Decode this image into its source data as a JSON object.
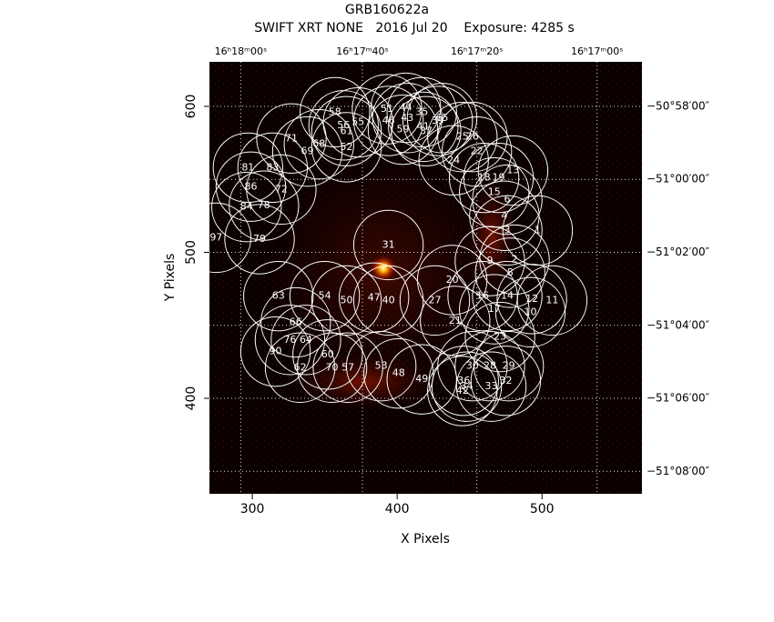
{
  "chart_data": {
    "type": "region-image",
    "title": "GRB160622a",
    "subtitle": "SWIFT XRT NONE   2016 Jul 20    Exposure: 4285 s",
    "x_label": "X Pixels",
    "y_label": "Y Pixels",
    "xlim": [
      270.4,
      569
    ],
    "ylim": [
      334.6,
      630.5
    ],
    "xticks": [
      300,
      400,
      500
    ],
    "yticks": [
      400,
      500,
      600
    ],
    "ra_ticks": [
      {
        "value": 292,
        "label": "16ʰ18ᵐ00ˢ"
      },
      {
        "value": 376,
        "label": "16ʰ17ᵐ40ˢ"
      },
      {
        "value": 455,
        "label": "16ʰ17ᵐ20ˢ"
      },
      {
        "value": 538,
        "label": "16ʰ17ᵐ00ˢ"
      }
    ],
    "dec_ticks": [
      {
        "value": 600,
        "label": "−50°58′00″"
      },
      {
        "value": 550,
        "label": "−51°00′00″"
      },
      {
        "value": 500,
        "label": "−51°02′00″"
      },
      {
        "value": 450,
        "label": "−51°04′00″"
      },
      {
        "value": 400,
        "label": "−51°06′00″"
      },
      {
        "value": 350,
        "label": "−51°08′00″"
      }
    ],
    "circle_color": "#ffffff",
    "grid": true,
    "regions": {
      "id": [
        1,
        2,
        3,
        4,
        6,
        8,
        9,
        10,
        11,
        12,
        13,
        14,
        15,
        16,
        17,
        18,
        19,
        20,
        21,
        22,
        23,
        24,
        25,
        26,
        27,
        28,
        29,
        30,
        31,
        32,
        33,
        34,
        36,
        42,
        47,
        40,
        48,
        49,
        53,
        50,
        54,
        57,
        70,
        60,
        62,
        90,
        64,
        76,
        66,
        63,
        52,
        68,
        69,
        71,
        72,
        86,
        84,
        78,
        79,
        97,
        81,
        83,
        58,
        51,
        44,
        35,
        65,
        61,
        56,
        55,
        46,
        43,
        41,
        59,
        37,
        39
      ],
      "x": [
        497,
        481,
        476,
        474,
        476,
        478,
        464,
        492,
        507,
        493,
        480,
        476,
        467,
        459,
        467,
        460,
        470,
        438,
        440,
        455,
        471,
        439,
        445,
        452,
        426,
        464,
        477,
        452,
        394,
        475,
        465,
        448,
        446,
        445,
        384,
        394,
        401,
        417,
        389,
        365,
        350,
        366,
        355,
        352,
        333,
        316,
        337,
        326,
        330,
        318,
        365,
        346,
        338,
        327,
        320,
        299,
        296,
        308,
        305,
        275,
        297,
        314,
        357,
        393,
        406,
        417,
        431,
        365,
        363,
        373,
        394,
        407,
        418,
        404,
        420,
        428
      ],
      "y": [
        515,
        495,
        515,
        525,
        536,
        486,
        494,
        459,
        467,
        468,
        556,
        470,
        541,
        470,
        461,
        551,
        551,
        481,
        453,
        569,
        442,
        563,
        579,
        579,
        467,
        422,
        422,
        422,
        505,
        412,
        408,
        408,
        412,
        405,
        469,
        467,
        417,
        413,
        422,
        467,
        470,
        421,
        421,
        430,
        421,
        432,
        440,
        440,
        452,
        470,
        572,
        574,
        569,
        578,
        543,
        545,
        531,
        532,
        509,
        510,
        558,
        558,
        596,
        598,
        599,
        596,
        592,
        583,
        587,
        589,
        590,
        592,
        586,
        584,
        583,
        590
      ]
    }
  }
}
